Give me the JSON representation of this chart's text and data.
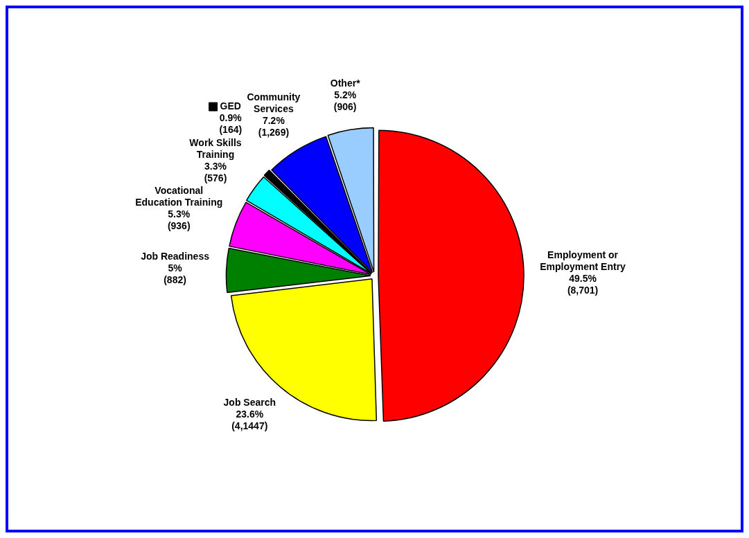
{
  "chart_data": {
    "type": "pie",
    "categories": [
      "Employment or\nEmployment Entry",
      "Job Search",
      "Job Readiness",
      "Vocational\nEducation Training",
      "Work Skills\nTraining",
      "GED",
      "Community\nServices",
      "Other*"
    ],
    "values": [
      49.5,
      23.6,
      5,
      5.3,
      3.3,
      0.9,
      7.2,
      5.2
    ],
    "value_labels": [
      "49.5%\n(8,701)",
      "23.6%\n(4,1447)",
      "5%\n(882)",
      "5.3%\n(936)",
      "3.3%\n(576)",
      "0.9%\n(164)",
      "7.2%\n(1,269)",
      "5.2%\n(906)"
    ],
    "colors": [
      "#ff0000",
      "#ffff00",
      "#008000",
      "#ff00ff",
      "#00ffff",
      "#000000",
      "#0000ff",
      "#99ccff"
    ]
  }
}
